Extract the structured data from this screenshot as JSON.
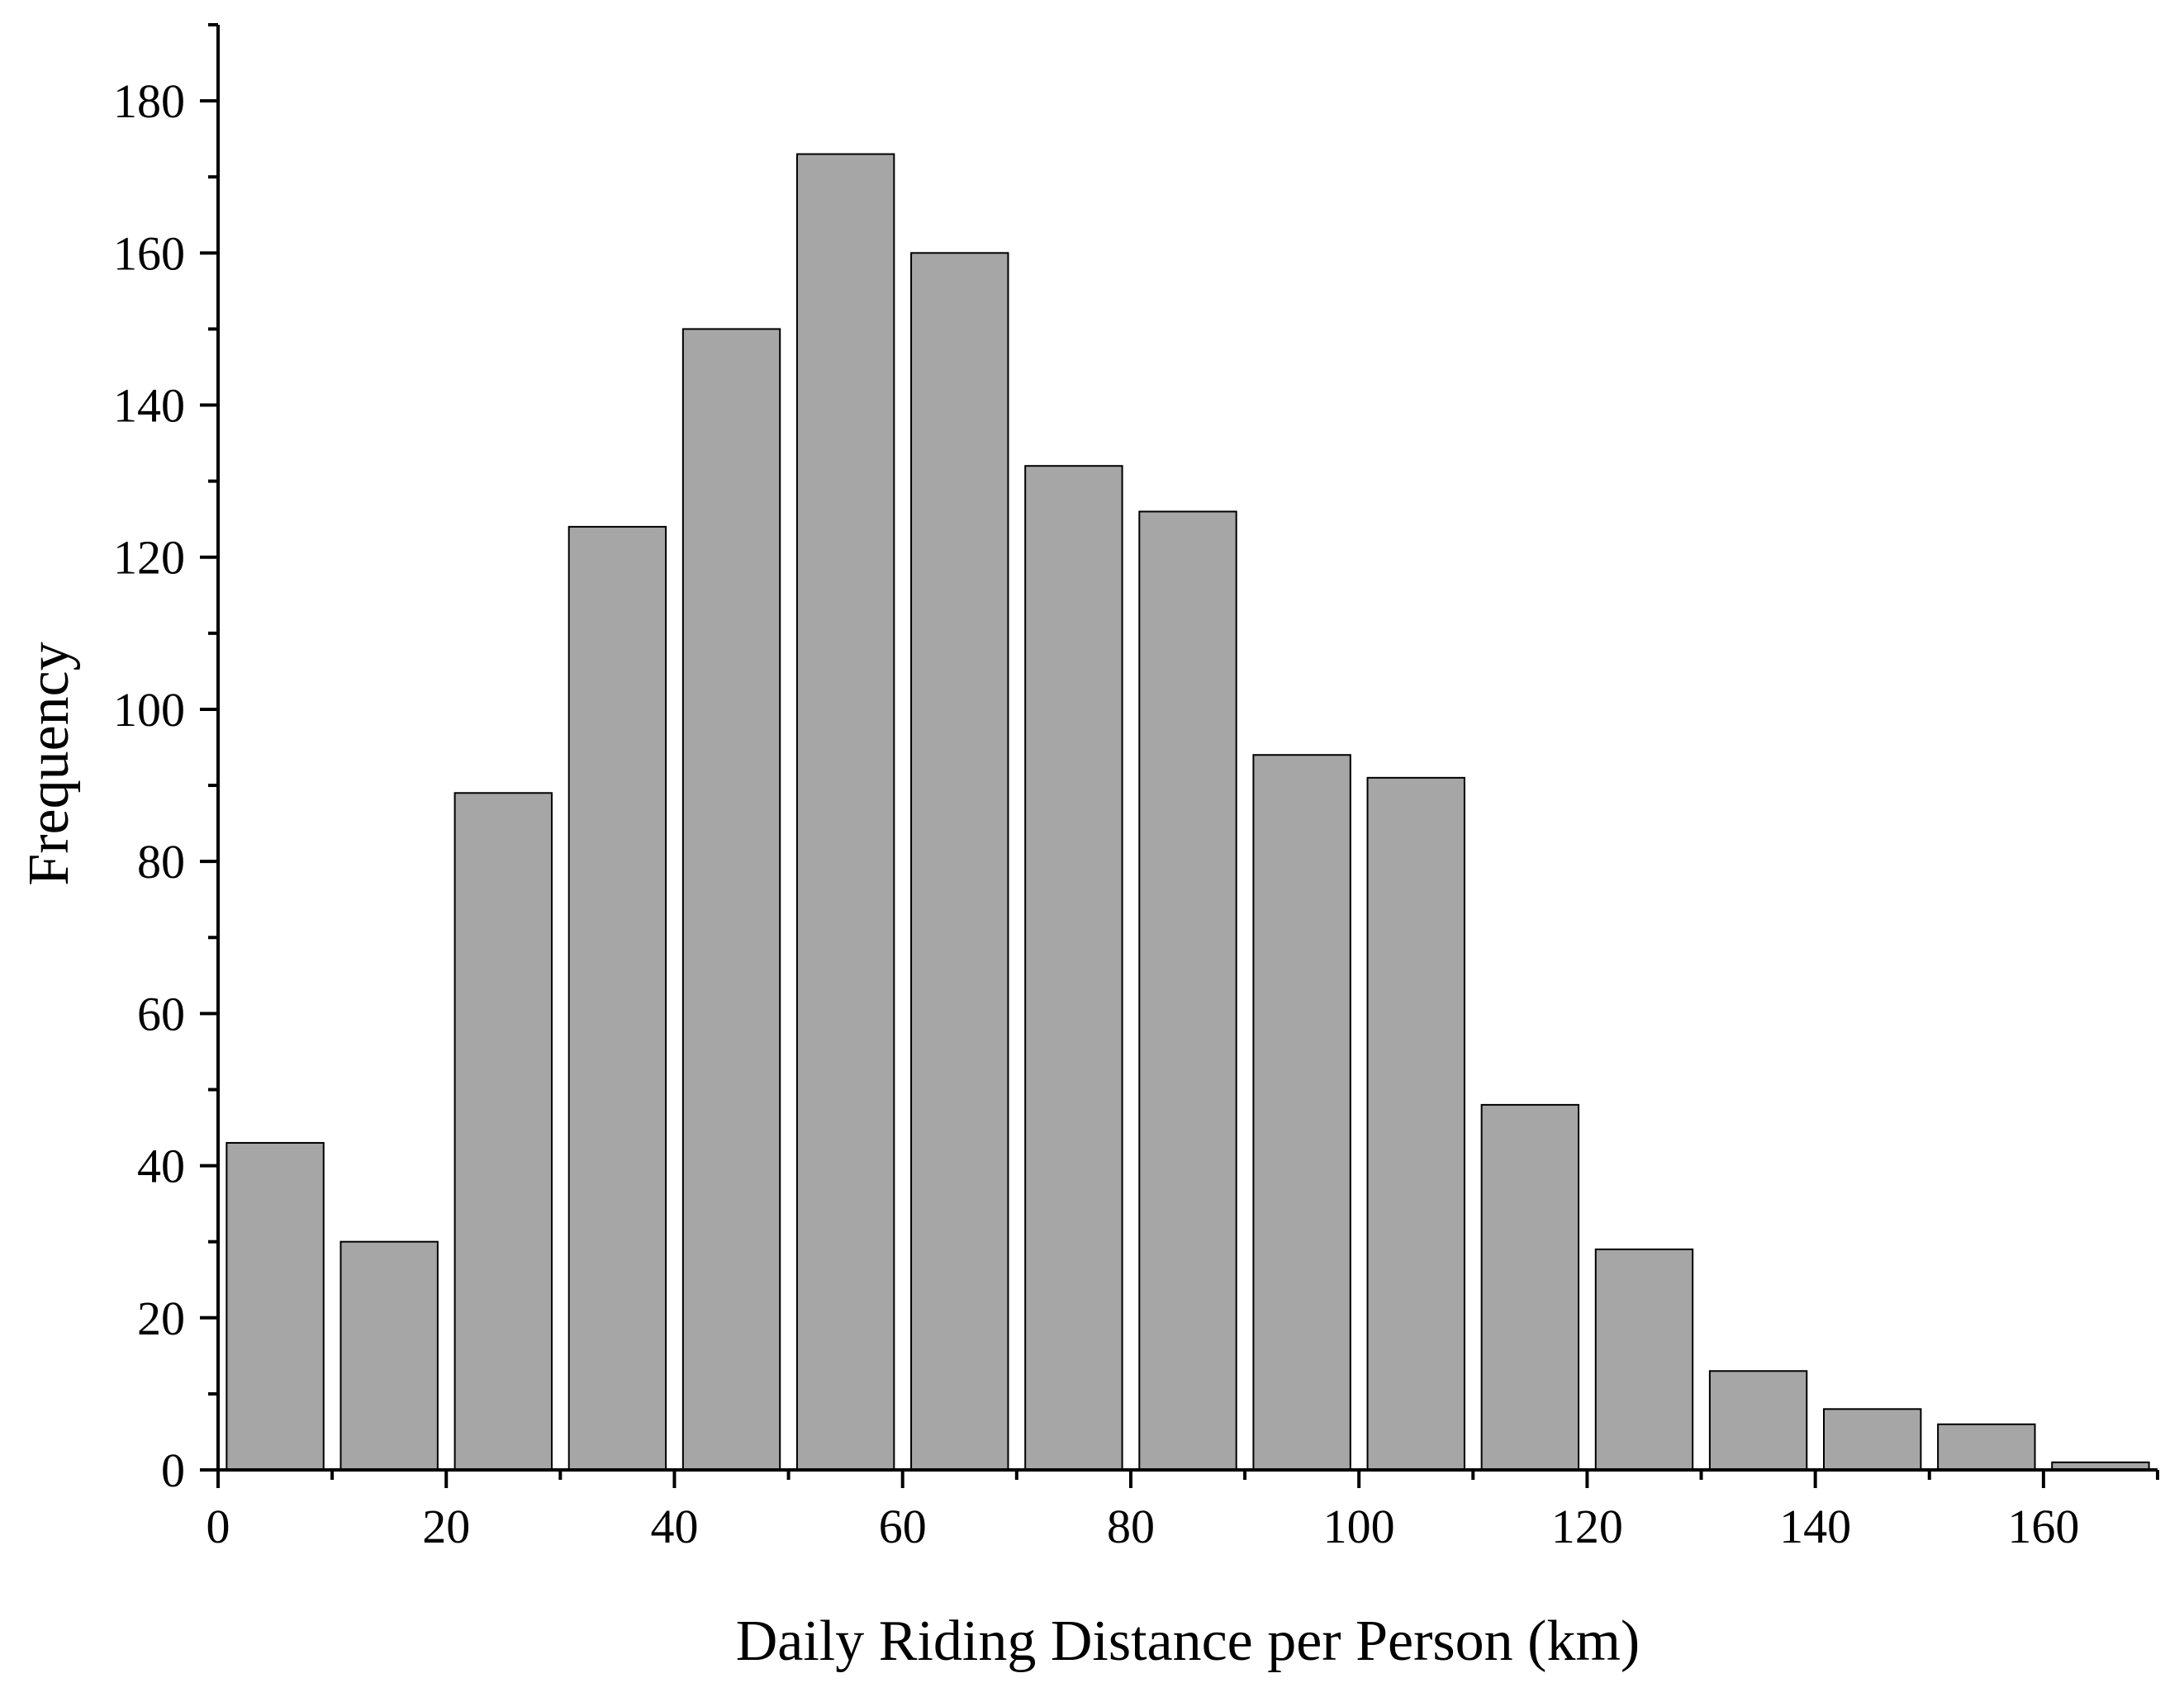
{
  "chart_data": {
    "type": "bar",
    "title": "",
    "xlabel": "Daily Riding Distance per Person (km)",
    "ylabel": "Frequency",
    "xlim": [
      0,
      170
    ],
    "ylim": [
      0,
      190
    ],
    "x_ticks": [
      0,
      20,
      40,
      60,
      80,
      100,
      120,
      140,
      160
    ],
    "y_ticks": [
      0,
      20,
      40,
      60,
      80,
      100,
      120,
      140,
      160,
      180
    ],
    "bin_width": 10,
    "bins": [
      {
        "start": 0,
        "end": 10,
        "value": 43
      },
      {
        "start": 10,
        "end": 20,
        "value": 30
      },
      {
        "start": 20,
        "end": 30,
        "value": 89
      },
      {
        "start": 30,
        "end": 40,
        "value": 124
      },
      {
        "start": 40,
        "end": 50,
        "value": 150
      },
      {
        "start": 50,
        "end": 60,
        "value": 173
      },
      {
        "start": 60,
        "end": 70,
        "value": 160
      },
      {
        "start": 70,
        "end": 80,
        "value": 132
      },
      {
        "start": 80,
        "end": 90,
        "value": 126
      },
      {
        "start": 90,
        "end": 100,
        "value": 94
      },
      {
        "start": 100,
        "end": 110,
        "value": 91
      },
      {
        "start": 110,
        "end": 120,
        "value": 48
      },
      {
        "start": 120,
        "end": 130,
        "value": 29
      },
      {
        "start": 130,
        "end": 140,
        "value": 13
      },
      {
        "start": 140,
        "end": 150,
        "value": 8
      },
      {
        "start": 150,
        "end": 160,
        "value": 6
      },
      {
        "start": 160,
        "end": 170,
        "value": 1
      }
    ],
    "bar_color": "#a6a6a6",
    "bar_edge_color": "#000000",
    "grid": false,
    "legend": "none"
  }
}
